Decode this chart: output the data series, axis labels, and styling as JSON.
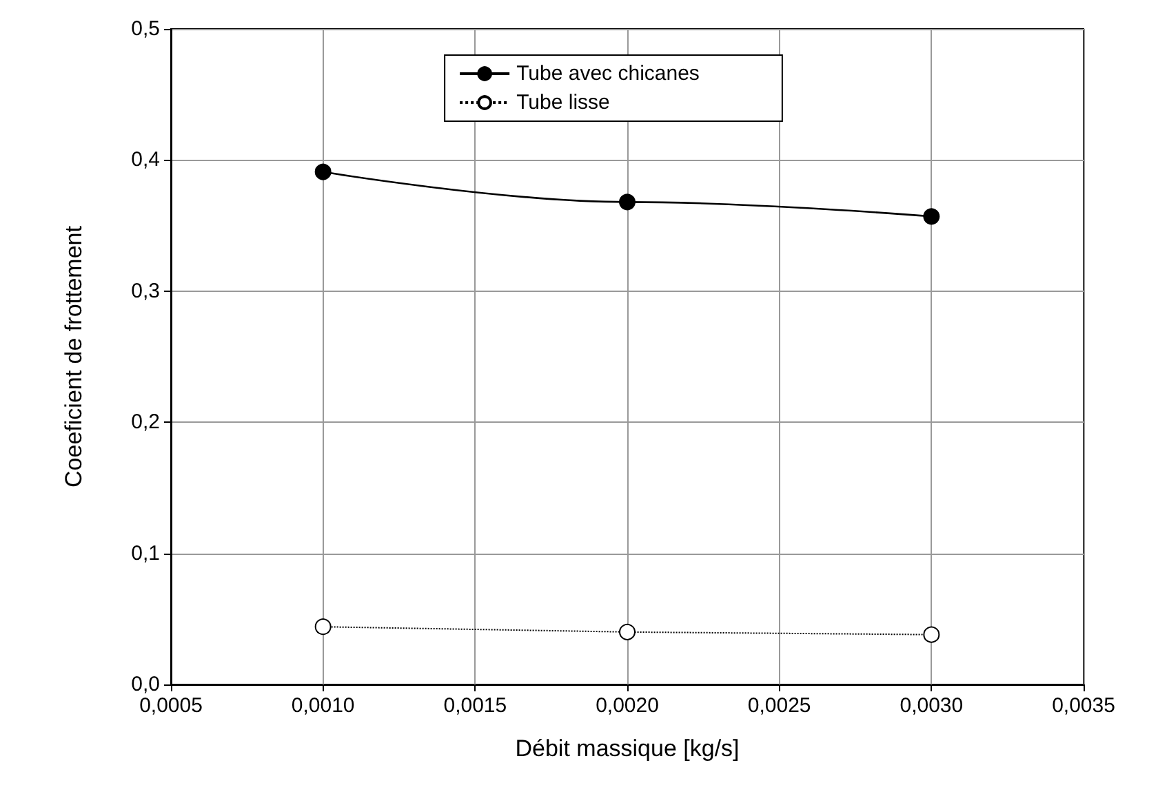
{
  "chart_data": {
    "type": "line",
    "xlabel": "Débit massique [kg/s]",
    "ylabel": "Coeeficient de frottement",
    "x": [
      0.001,
      0.002,
      0.003
    ],
    "series": [
      {
        "name": "Tube avec chicanes",
        "color": "#000000",
        "values": [
          0.391,
          0.368,
          0.357
        ],
        "line_style": "solid"
      },
      {
        "name": "Tube lisse",
        "color": "#000000",
        "values": [
          0.044,
          0.04,
          0.038
        ],
        "line_style": "dotted"
      }
    ],
    "xlim": [
      0.0005,
      0.0035
    ],
    "xticks": [
      {
        "value": 0.0005,
        "label": "0,0005"
      },
      {
        "value": 0.001,
        "label": "0,0010"
      },
      {
        "value": 0.0015,
        "label": "0,0015"
      },
      {
        "value": 0.002,
        "label": "0,0020"
      },
      {
        "value": 0.0025,
        "label": "0,0025"
      },
      {
        "value": 0.003,
        "label": "0,0030"
      },
      {
        "value": 0.0035,
        "label": "0,0035"
      }
    ],
    "ylim": [
      0,
      0.5
    ],
    "yticks": [
      {
        "value": 0,
        "label": "0,0"
      },
      {
        "value": 0.1,
        "label": "0,1"
      },
      {
        "value": 0.2,
        "label": "0,2"
      },
      {
        "value": 0.3,
        "label": "0,3"
      },
      {
        "value": 0.4,
        "label": "0,4"
      },
      {
        "value": 0.5,
        "label": "0,5"
      }
    ],
    "grid": true,
    "legend": "top",
    "marker": "circle"
  }
}
